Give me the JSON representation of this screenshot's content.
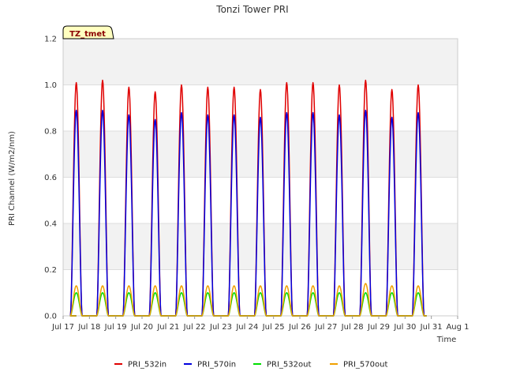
{
  "chart_data": {
    "type": "line",
    "title": "Tonzi Tower PRI",
    "xlabel": "Time",
    "ylabel": "PRI Channel (W/m2/nm)",
    "badge": "TZ_tmet",
    "ylim": [
      0.0,
      1.2
    ],
    "yticks": [
      "0.0",
      "0.2",
      "0.4",
      "0.6",
      "0.8",
      "1.0",
      "1.2"
    ],
    "xlim": [
      17,
      32
    ],
    "xticks": [
      "Jul 17",
      "Jul 18",
      "Jul 19",
      "Jul 20",
      "Jul 21",
      "Jul 22",
      "Jul 23",
      "Jul 24",
      "Jul 25",
      "Jul 26",
      "Jul 27",
      "Jul 28",
      "Jul 29",
      "Jul 30",
      "Jul 31",
      "Aug 1"
    ],
    "day_start": 17.5,
    "daily_peak_day": [
      17.5,
      18.5,
      19.5,
      20.5,
      21.5,
      22.5,
      23.5,
      24.5,
      25.5,
      26.5,
      27.5,
      28.5,
      29.5,
      30.5
    ],
    "series": [
      {
        "name": "PRI_532in",
        "color": "#e00000",
        "peaks": [
          1.01,
          1.02,
          0.99,
          0.97,
          1.0,
          0.99,
          0.99,
          0.98,
          1.01,
          1.01,
          1.0,
          1.02,
          0.98,
          1.0
        ]
      },
      {
        "name": "PRI_570in",
        "color": "#0000dd",
        "peaks": [
          0.89,
          0.89,
          0.87,
          0.85,
          0.88,
          0.87,
          0.87,
          0.86,
          0.88,
          0.88,
          0.87,
          0.89,
          0.86,
          0.88
        ]
      },
      {
        "name": "PRI_532out",
        "color": "#00dd00",
        "peaks": [
          0.1,
          0.1,
          0.1,
          0.1,
          0.1,
          0.1,
          0.1,
          0.1,
          0.1,
          0.1,
          0.1,
          0.1,
          0.1,
          0.1
        ]
      },
      {
        "name": "PRI_570out",
        "color": "#f0a000",
        "peaks": [
          0.13,
          0.13,
          0.13,
          0.13,
          0.13,
          0.13,
          0.13,
          0.13,
          0.13,
          0.13,
          0.13,
          0.14,
          0.13,
          0.13
        ]
      }
    ],
    "legend_position": "bottom-center"
  }
}
